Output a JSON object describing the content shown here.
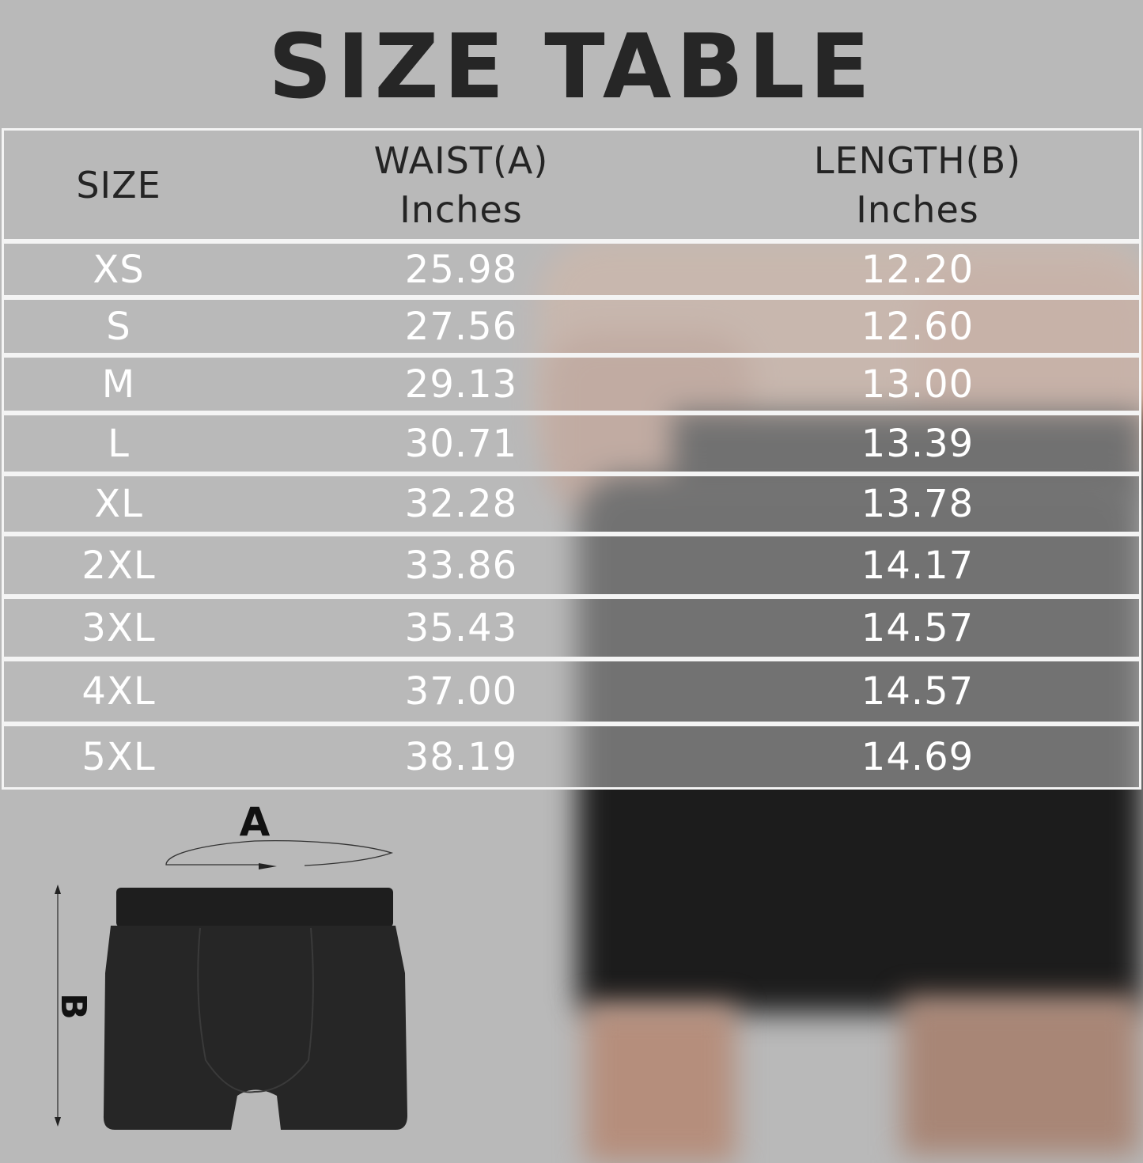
{
  "title": "SIZE TABLE",
  "header": {
    "size": "SIZE",
    "waist": "WAIST(A)",
    "waist_unit": "Inches",
    "length": "LENGTH(B)",
    "length_unit": "Inches"
  },
  "rows": [
    {
      "size": "XS",
      "waist": "25.98",
      "length": "12.20"
    },
    {
      "size": "S",
      "waist": "27.56",
      "length": "12.60"
    },
    {
      "size": "M",
      "waist": "29.13",
      "length": "13.00"
    },
    {
      "size": "L",
      "waist": "30.71",
      "length": "13.39"
    },
    {
      "size": "XL",
      "waist": "32.28",
      "length": "13.78"
    },
    {
      "size": "2XL",
      "waist": "33.86",
      "length": "14.17"
    },
    {
      "size": "3XL",
      "waist": "35.43",
      "length": "14.57"
    },
    {
      "size": "4XL",
      "waist": "37.00",
      "length": "14.57"
    },
    {
      "size": "5XL",
      "waist": "38.19",
      "length": "14.69"
    }
  ],
  "diagram": {
    "waist_label": "A",
    "length_label": "B"
  }
}
